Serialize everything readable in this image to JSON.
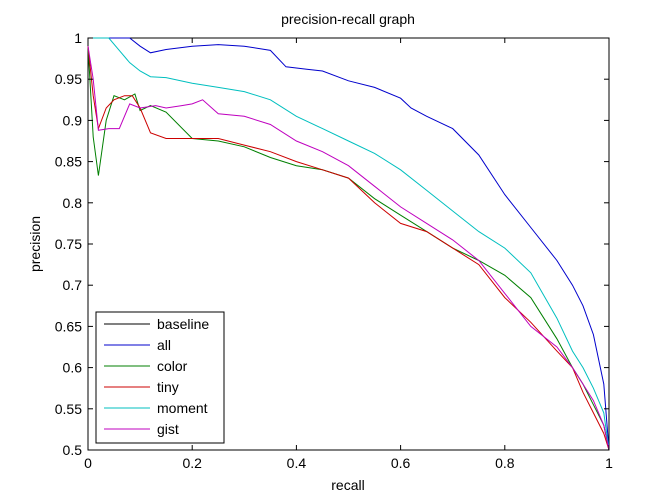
{
  "chart_data": {
    "type": "line",
    "title": "precision-recall graph",
    "xlabel": "recall",
    "ylabel": "precision",
    "xlim": [
      0,
      1
    ],
    "ylim": [
      0.5,
      1
    ],
    "xticks": [
      0,
      0.2,
      0.4,
      0.6,
      0.8,
      1
    ],
    "xtick_labels": [
      "0",
      "0.2",
      "0.4",
      "0.6",
      "0.8",
      "1"
    ],
    "yticks": [
      0.5,
      0.55,
      0.6,
      0.65,
      0.7,
      0.75,
      0.8,
      0.85,
      0.9,
      0.95,
      1
    ],
    "ytick_labels": [
      "0.5",
      "0.55",
      "0.6",
      "0.65",
      "0.7",
      "0.75",
      "0.8",
      "0.85",
      "0.9",
      "0.95",
      "1"
    ],
    "grid": false,
    "legend_position": "bottom-left",
    "series": [
      {
        "name": "baseline",
        "color": "#000000",
        "x": [
          0,
          1
        ],
        "y": [
          1,
          1
        ]
      },
      {
        "name": "all",
        "color": "#0000cc",
        "x": [
          0,
          0.02,
          0.05,
          0.08,
          0.1,
          0.12,
          0.15,
          0.2,
          0.25,
          0.3,
          0.35,
          0.38,
          0.42,
          0.45,
          0.5,
          0.55,
          0.6,
          0.62,
          0.65,
          0.7,
          0.75,
          0.8,
          0.85,
          0.9,
          0.93,
          0.95,
          0.97,
          0.98,
          0.99,
          1
        ],
        "y": [
          1,
          1,
          1,
          1,
          0.99,
          0.982,
          0.986,
          0.99,
          0.992,
          0.99,
          0.985,
          0.965,
          0.962,
          0.96,
          0.948,
          0.94,
          0.927,
          0.915,
          0.905,
          0.89,
          0.858,
          0.81,
          0.77,
          0.73,
          0.7,
          0.675,
          0.64,
          0.61,
          0.58,
          0.5
        ]
      },
      {
        "name": "color",
        "color": "#007f00",
        "x": [
          0,
          0.01,
          0.02,
          0.035,
          0.05,
          0.07,
          0.09,
          0.1,
          0.12,
          0.15,
          0.2,
          0.25,
          0.3,
          0.35,
          0.4,
          0.45,
          0.5,
          0.55,
          0.6,
          0.65,
          0.7,
          0.75,
          0.8,
          0.85,
          0.9,
          0.93,
          0.95,
          0.97,
          0.99,
          1
        ],
        "y": [
          0.99,
          0.88,
          0.833,
          0.9,
          0.93,
          0.925,
          0.932,
          0.912,
          0.918,
          0.91,
          0.878,
          0.875,
          0.868,
          0.855,
          0.845,
          0.84,
          0.83,
          0.805,
          0.785,
          0.765,
          0.745,
          0.73,
          0.712,
          0.685,
          0.635,
          0.6,
          0.58,
          0.555,
          0.53,
          0.5
        ]
      },
      {
        "name": "tiny",
        "color": "#cc0000",
        "x": [
          0,
          0.01,
          0.02,
          0.035,
          0.05,
          0.07,
          0.085,
          0.1,
          0.12,
          0.15,
          0.2,
          0.25,
          0.3,
          0.35,
          0.4,
          0.45,
          0.5,
          0.55,
          0.6,
          0.65,
          0.7,
          0.75,
          0.8,
          0.85,
          0.9,
          0.93,
          0.95,
          0.97,
          0.99,
          1
        ],
        "y": [
          0.99,
          0.93,
          0.89,
          0.915,
          0.925,
          0.93,
          0.93,
          0.915,
          0.885,
          0.878,
          0.878,
          0.878,
          0.87,
          0.862,
          0.85,
          0.84,
          0.83,
          0.8,
          0.775,
          0.765,
          0.745,
          0.725,
          0.685,
          0.655,
          0.62,
          0.6,
          0.57,
          0.545,
          0.52,
          0.5
        ]
      },
      {
        "name": "moment",
        "color": "#00bfbf",
        "x": [
          0,
          0.02,
          0.04,
          0.06,
          0.08,
          0.1,
          0.12,
          0.15,
          0.2,
          0.25,
          0.3,
          0.35,
          0.4,
          0.45,
          0.5,
          0.55,
          0.6,
          0.65,
          0.7,
          0.75,
          0.8,
          0.85,
          0.9,
          0.93,
          0.95,
          0.97,
          0.99,
          1
        ],
        "y": [
          1,
          1,
          1,
          0.985,
          0.97,
          0.96,
          0.953,
          0.952,
          0.945,
          0.94,
          0.935,
          0.925,
          0.905,
          0.89,
          0.875,
          0.86,
          0.84,
          0.815,
          0.79,
          0.765,
          0.745,
          0.715,
          0.66,
          0.62,
          0.6,
          0.575,
          0.545,
          0.5
        ]
      },
      {
        "name": "gist",
        "color": "#bf00bf",
        "x": [
          0,
          0.01,
          0.02,
          0.04,
          0.06,
          0.08,
          0.1,
          0.13,
          0.15,
          0.18,
          0.2,
          0.22,
          0.25,
          0.3,
          0.35,
          0.4,
          0.45,
          0.5,
          0.55,
          0.6,
          0.65,
          0.7,
          0.75,
          0.8,
          0.85,
          0.9,
          0.93,
          0.95,
          0.97,
          0.99,
          1
        ],
        "y": [
          0.99,
          0.95,
          0.888,
          0.89,
          0.89,
          0.92,
          0.915,
          0.918,
          0.915,
          0.918,
          0.92,
          0.925,
          0.908,
          0.905,
          0.895,
          0.875,
          0.862,
          0.845,
          0.82,
          0.795,
          0.775,
          0.755,
          0.73,
          0.69,
          0.65,
          0.625,
          0.6,
          0.58,
          0.56,
          0.53,
          0.5
        ]
      }
    ]
  }
}
